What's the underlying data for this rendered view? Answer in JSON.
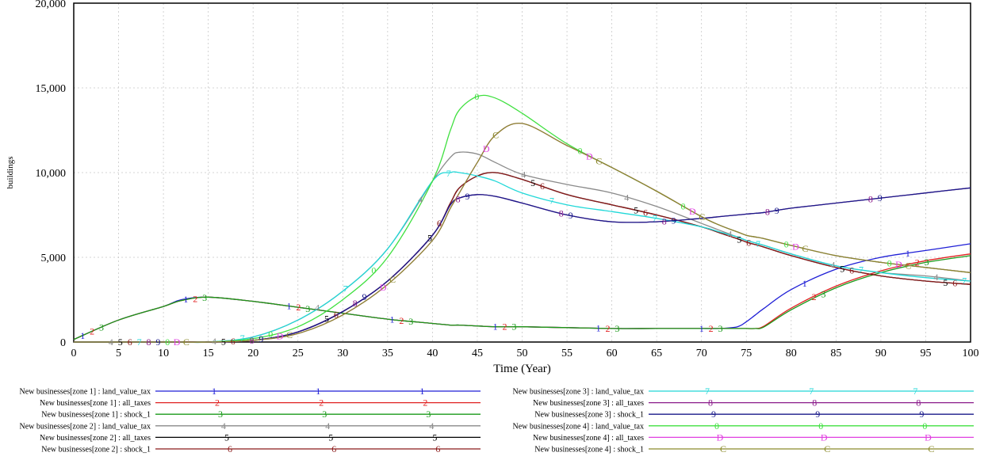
{
  "chart_data": {
    "type": "line",
    "xlabel": "Time (Year)",
    "ylabel": "buildings",
    "xlim": [
      0,
      100
    ],
    "ylim": [
      0,
      20000
    ],
    "x_ticks": [
      "0",
      "5",
      "10",
      "15",
      "20",
      "25",
      "30",
      "35",
      "40",
      "45",
      "50",
      "55",
      "60",
      "65",
      "70",
      "75",
      "80",
      "85",
      "90",
      "95",
      "100"
    ],
    "y_ticks": [
      "0",
      "5,000",
      "10,000",
      "15,000",
      "20,000"
    ],
    "y_tick_values": [
      0,
      5000,
      10000,
      15000,
      20000
    ],
    "grid": true,
    "legend_position": "bottom",
    "x": [
      0,
      5,
      10,
      12,
      15,
      20,
      25,
      30,
      35,
      40,
      42,
      43,
      45,
      47,
      50,
      55,
      60,
      65,
      70,
      72,
      74,
      75,
      76,
      77,
      80,
      85,
      90,
      95,
      100
    ],
    "series": [
      {
        "name": "New businesses[zone 1] : land_value_tax",
        "marker": "1",
        "color": "#1f1fd6",
        "values": [
          150,
          1300,
          2100,
          2500,
          2650,
          2400,
          2050,
          1700,
          1350,
          1100,
          1000,
          1000,
          950,
          900,
          900,
          850,
          800,
          800,
          800,
          800,
          900,
          1200,
          1600,
          2000,
          3100,
          4300,
          5000,
          5400,
          5800
        ]
      },
      {
        "name": "New businesses[zone 1] : all_taxes",
        "marker": "2",
        "color": "#e02020",
        "values": [
          150,
          1300,
          2100,
          2450,
          2650,
          2400,
          2050,
          1700,
          1350,
          1100,
          1000,
          1000,
          950,
          900,
          900,
          850,
          800,
          800,
          800,
          800,
          800,
          800,
          800,
          950,
          2000,
          3300,
          4200,
          4800,
          5200
        ]
      },
      {
        "name": "New businesses[zone 1] : shock_1",
        "marker": "3",
        "color": "#1a9a1a",
        "values": [
          150,
          1300,
          2100,
          2450,
          2650,
          2400,
          2050,
          1700,
          1350,
          1100,
          1000,
          1000,
          950,
          900,
          900,
          850,
          800,
          800,
          800,
          800,
          800,
          800,
          800,
          900,
          1900,
          3200,
          4100,
          4700,
          5100
        ]
      },
      {
        "name": "New businesses[zone 2] : land_value_tax",
        "marker": "4",
        "color": "#8a8a8a",
        "values": [
          0,
          0,
          0,
          0,
          0,
          300,
          1300,
          3000,
          5500,
          9500,
          10900,
          11200,
          11100,
          10600,
          9900,
          9300,
          8800,
          8000,
          7000,
          6600,
          6200,
          6000,
          5850,
          5700,
          5200,
          4500,
          4100,
          3900,
          3600
        ]
      },
      {
        "name": "New businesses[zone 2] : all_taxes",
        "marker": "5",
        "color": "#000000",
        "values": [
          0,
          0,
          0,
          0,
          0,
          100,
          600,
          1800,
          3600,
          6300,
          8200,
          9100,
          9800,
          10000,
          9600,
          8700,
          8100,
          7500,
          6800,
          6450,
          6100,
          5900,
          5750,
          5600,
          5100,
          4400,
          3900,
          3600,
          3400
        ]
      },
      {
        "name": "New businesses[zone 2] : shock_1",
        "marker": "6",
        "color": "#8b1a1a",
        "values": [
          0,
          0,
          0,
          0,
          0,
          100,
          600,
          1800,
          3600,
          6300,
          8200,
          9100,
          9800,
          10000,
          9600,
          8700,
          8100,
          7500,
          6800,
          6450,
          6100,
          5900,
          5750,
          5600,
          5100,
          4400,
          3900,
          3600,
          3400
        ]
      },
      {
        "name": "New businesses[zone 3] : land_value_tax",
        "marker": "7",
        "color": "#20d8d8",
        "values": [
          0,
          0,
          0,
          0,
          0,
          300,
          1300,
          3000,
          5500,
          9500,
          10000,
          10000,
          9800,
          9500,
          8800,
          8100,
          7700,
          7300,
          6800,
          6500,
          6200,
          6000,
          5850,
          5700,
          5200,
          4500,
          4100,
          3800,
          3600
        ]
      },
      {
        "name": "New businesses[zone 3] : all_taxes",
        "marker": "8",
        "color": "#8a1a8a",
        "values": [
          0,
          0,
          0,
          0,
          0,
          100,
          600,
          1800,
          3600,
          6300,
          8100,
          8500,
          8700,
          8600,
          8200,
          7500,
          7100,
          7100,
          7300,
          7400,
          7500,
          7550,
          7600,
          7650,
          7900,
          8200,
          8500,
          8800,
          9100
        ]
      },
      {
        "name": "New businesses[zone 3] : shock_1",
        "marker": "9",
        "color": "#1a1a8a",
        "values": [
          0,
          0,
          0,
          0,
          0,
          100,
          600,
          1800,
          3600,
          6300,
          8100,
          8500,
          8700,
          8600,
          8200,
          7500,
          7100,
          7100,
          7300,
          7400,
          7500,
          7550,
          7600,
          7650,
          7900,
          8200,
          8500,
          8800,
          9100
        ]
      },
      {
        "name": "New businesses[zone 4] : land_value_tax",
        "marker": "0",
        "color": "#40e040",
        "values": [
          0,
          0,
          0,
          0,
          0,
          200,
          900,
          2500,
          5000,
          9500,
          12500,
          13700,
          14500,
          14400,
          13500,
          11700,
          10300,
          8900,
          7400,
          6900,
          6500,
          6300,
          6200,
          6100,
          5700,
          5100,
          4700,
          4400,
          4100
        ]
      },
      {
        "name": "New businesses[zone 4] : all_taxes",
        "marker": "D",
        "color": "#e040e0",
        "values": [
          0,
          0,
          0,
          0,
          0,
          100,
          500,
          1600,
          3400,
          6000,
          7900,
          8800,
          10600,
          12200,
          12900,
          11600,
          10300,
          8900,
          7400,
          6900,
          6500,
          6300,
          6200,
          6100,
          5700,
          5100,
          4700,
          4400,
          4100
        ]
      },
      {
        "name": "New businesses[zone 4] : shock_1",
        "marker": "C",
        "color": "#8a8a2a",
        "values": [
          0,
          0,
          0,
          0,
          0,
          100,
          500,
          1600,
          3400,
          6000,
          7900,
          8800,
          10600,
          12200,
          12900,
          11600,
          10300,
          8900,
          7400,
          6900,
          6500,
          6300,
          6200,
          6100,
          5700,
          5100,
          4700,
          4400,
          4100
        ]
      }
    ]
  }
}
